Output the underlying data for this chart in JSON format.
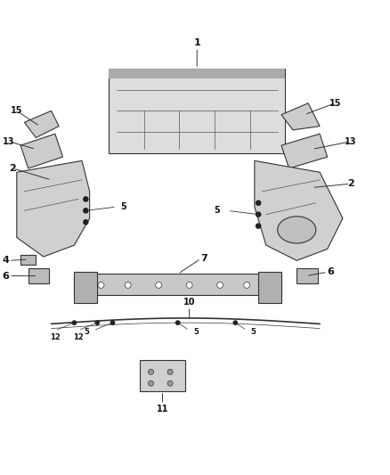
{
  "bg_color": "#ffffff",
  "line_color": "#333333",
  "gray1": "#dddddd",
  "gray2": "#cccccc",
  "gray3": "#d0d0d0",
  "gray4": "#bbbbbb",
  "gray5": "#c8c8c8",
  "gray6": "#b0b0b0",
  "gray7": "#aaaaaa",
  "gray8": "#c0c0c0",
  "gray9": "#999999"
}
